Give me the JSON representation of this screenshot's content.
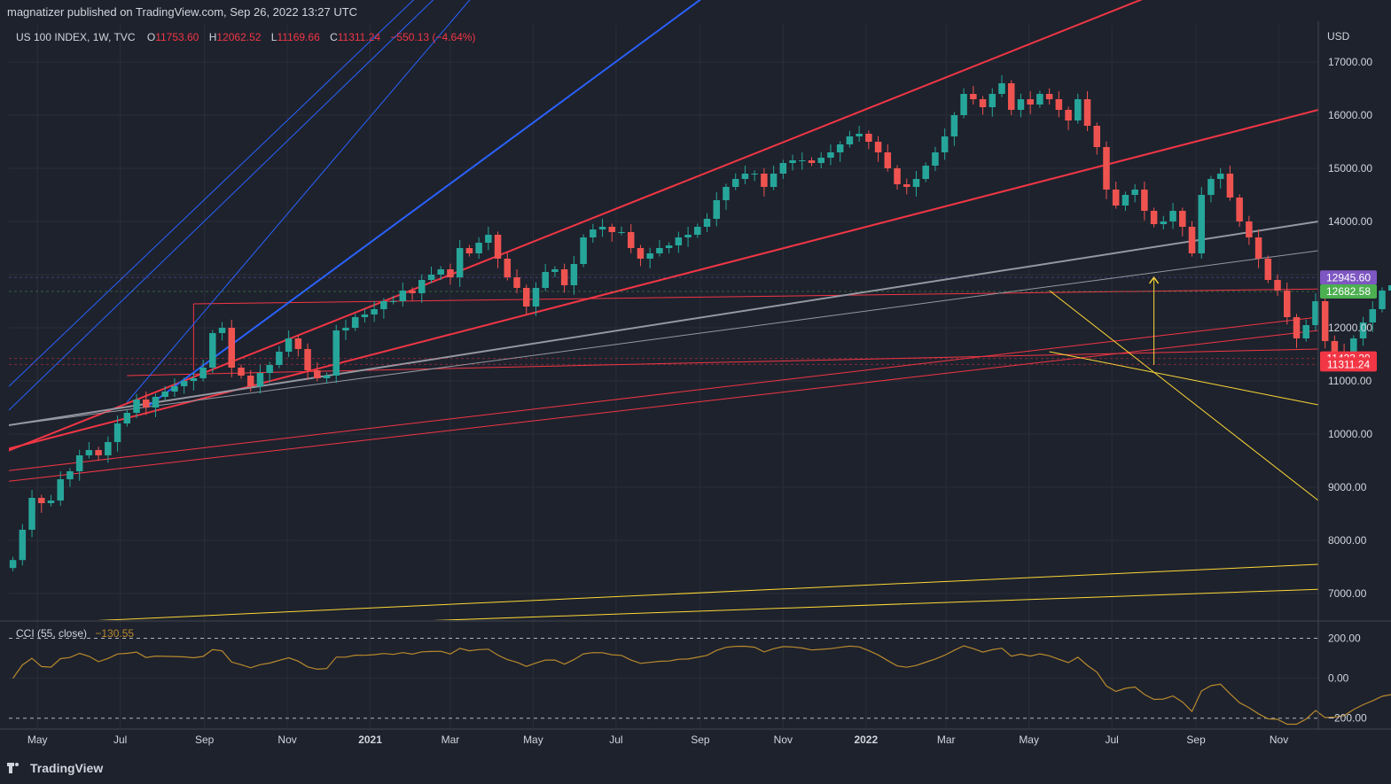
{
  "header": {
    "publisher": "magnatizer published on TradingView.com, Sep 26, 2022 13:27 UTC"
  },
  "legend": {
    "symbol": "US 100 INDEX, 1W, TVC",
    "o_label": "O",
    "o_value": "11753.60",
    "h_label": "H",
    "h_value": "12062.52",
    "l_label": "L",
    "l_value": "11169.66",
    "c_label": "C",
    "c_value": "11311.24",
    "change": "−550.13 (−4.64%)"
  },
  "currency": "USD",
  "cci_legend": {
    "label": "CCI (55, close)",
    "value": "−130.55"
  },
  "footer": {
    "brand": "TradingView"
  },
  "colors": {
    "background": "#1e222d",
    "grid": "#2a2e39",
    "up": "#26a69a",
    "down": "#ef5350",
    "red_line": "#f23645",
    "blue_line": "#2962ff",
    "gray_line": "#9598a1",
    "yellow_line": "#fdd835",
    "cci": "#b8892c",
    "text": "#d1d4dc"
  },
  "chart_data": [
    {
      "type": "candlestick",
      "symbol": "US 100 INDEX",
      "interval": "1W",
      "ylim": [
        6500,
        17700
      ],
      "y_ticks": [
        7000,
        8000,
        9000,
        10000,
        11000,
        12000,
        13000,
        14000,
        15000,
        16000,
        17000
      ],
      "y_tick_labels": [
        "7000.00",
        "8000.00",
        "9000.00",
        "10000.00",
        "11000.00",
        "12000.00",
        "13000.00",
        "14000.00",
        "15000.00",
        "16000.00",
        "17000.00"
      ],
      "x_tick_labels": [
        "May",
        "Jul",
        "Sep",
        "Nov",
        "2021",
        "Mar",
        "May",
        "Jul",
        "Sep",
        "Nov",
        "2022",
        "Mar",
        "May",
        "Jul",
        "Sep",
        "Nov"
      ],
      "x_tick_dates": [
        "2020-05-01",
        "2020-07-01",
        "2020-09-01",
        "2020-11-01",
        "2021-01-01",
        "2021-03-01",
        "2021-05-01",
        "2021-07-01",
        "2021-09-01",
        "2021-11-01",
        "2022-01-01",
        "2022-03-01",
        "2022-05-01",
        "2022-07-01",
        "2022-09-01",
        "2022-11-01"
      ],
      "x_range": [
        "2020-04-10",
        "2022-11-30"
      ],
      "first_week": "2020-04-13",
      "weekly_close": [
        7630,
        8200,
        8800,
        8700,
        8750,
        9150,
        9300,
        9600,
        9700,
        9600,
        9850,
        10200,
        10400,
        10650,
        10500,
        10700,
        10800,
        10900,
        11000,
        11050,
        11250,
        11900,
        12000,
        11250,
        11100,
        10900,
        11150,
        11300,
        11550,
        11800,
        11600,
        11200,
        11050,
        11100,
        11950,
        12000,
        12200,
        12250,
        12350,
        12500,
        12500,
        12700,
        12650,
        12900,
        13000,
        13100,
        12950,
        13500,
        13400,
        13600,
        13750,
        13300,
        12950,
        12750,
        12400,
        12750,
        13050,
        13100,
        12800,
        13200,
        13700,
        13850,
        13900,
        13800,
        13800,
        13500,
        13300,
        13400,
        13500,
        13550,
        13700,
        13750,
        13900,
        14050,
        14400,
        14650,
        14800,
        14900,
        14900,
        14650,
        14900,
        15100,
        15150,
        15150,
        15100,
        15200,
        15300,
        15450,
        15600,
        15650,
        15500,
        15300,
        15000,
        14700,
        14650,
        14800,
        15050,
        15300,
        15600,
        16000,
        16400,
        16300,
        16150,
        16400,
        16600,
        16100,
        16300,
        16200,
        16400,
        16300,
        16100,
        15900,
        16300,
        15800,
        15400,
        14600,
        14300,
        14500,
        14600,
        14200,
        13950,
        14000,
        14200,
        13900,
        13400,
        14500,
        14800,
        14900,
        14450,
        14000,
        13700,
        13300,
        12900,
        12700,
        12200,
        11800,
        12050,
        12500,
        11750,
        11550,
        11450,
        11800,
        12100,
        12350,
        12700,
        12800,
        13050,
        13200,
        13600,
        13300,
        12900,
        12300,
        12050,
        12050,
        12400,
        11750,
        11311
      ],
      "cci": {
        "label": "CCI (55, close)",
        "ylim": [
          -250,
          260
        ],
        "y_ticks": [
          200,
          0,
          -200
        ],
        "y_tick_labels": [
          "200.00",
          "0.00",
          "−200.00"
        ],
        "last_value": -130.55
      },
      "price_labels": [
        {
          "value": 12945.6,
          "text": "12945.60",
          "color": "#7e57c2"
        },
        {
          "value": 12682.58,
          "text": "12682.58",
          "color": "#4caf50"
        },
        {
          "value": 11423.2,
          "text": "11423.20",
          "color": "#f23645"
        },
        {
          "value": 11311.24,
          "text": "11311.24",
          "color": "#f23645"
        }
      ],
      "drawings": [
        {
          "color": "red",
          "width": 2,
          "from": [
            "2020-04-06",
            9650
          ],
          "to": [
            "2022-11-30",
            19500
          ]
        },
        {
          "color": "red",
          "width": 2,
          "from": [
            "2020-04-06",
            9700
          ],
          "to": [
            "2022-11-30",
            16100
          ]
        },
        {
          "color": "red",
          "width": 1,
          "from": [
            "2020-04-06",
            9300
          ],
          "to": [
            "2022-11-30",
            12200
          ]
        },
        {
          "color": "red",
          "width": 1,
          "from": [
            "2020-04-06",
            9100
          ],
          "to": [
            "2022-11-30",
            11950
          ]
        },
        {
          "color": "red",
          "width": 1,
          "from": [
            "2020-07-06",
            11100
          ],
          "to": [
            "2022-11-30",
            11600
          ]
        },
        {
          "color": "red",
          "width": 1,
          "from": [
            "2020-08-24",
            12450
          ],
          "to": [
            "2022-11-30",
            12730
          ]
        },
        {
          "color": "red",
          "width": 1,
          "from": [
            "2020-08-24",
            11200
          ],
          "to": [
            "2020-08-24",
            12450
          ]
        },
        {
          "color": "gray",
          "width": 2,
          "from": [
            "2020-04-06",
            10150
          ],
          "to": [
            "2022-11-30",
            14000
          ]
        },
        {
          "color": "gray",
          "width": 1,
          "from": [
            "2020-04-06",
            10150
          ],
          "to": [
            "2022-11-30",
            13450
          ]
        },
        {
          "color": "blue",
          "width": 2,
          "from": [
            "2020-07-20",
            10500
          ],
          "to": [
            "2021-10-15",
            19000
          ]
        },
        {
          "color": "blue",
          "width": 1,
          "from": [
            "2020-04-06",
            10800
          ],
          "to": [
            "2021-03-08",
            19000
          ]
        },
        {
          "color": "blue",
          "width": 1,
          "from": [
            "2020-04-06",
            10350
          ],
          "to": [
            "2021-03-22",
            19000
          ]
        },
        {
          "color": "blue",
          "width": 1,
          "from": [
            "2020-07-06",
            10600
          ],
          "to": [
            "2021-04-12",
            19000
          ]
        },
        {
          "color": "yellow",
          "width": 1,
          "from": [
            "2022-05-16",
            12700
          ],
          "to": [
            "2022-11-30",
            8750
          ]
        },
        {
          "color": "yellow",
          "width": 1,
          "from": [
            "2022-05-16",
            11550
          ],
          "to": [
            "2022-11-30",
            10550
          ]
        },
        {
          "color": "yellow",
          "width": 1,
          "from": [
            "2020-05-10",
            6450
          ],
          "to": [
            "2022-11-30",
            7550
          ]
        },
        {
          "color": "yellow",
          "width": 1,
          "from": [
            "2021-01-01",
            6450
          ],
          "to": [
            "2022-11-30",
            7080
          ]
        },
        {
          "color": "yellow",
          "width": 1,
          "from": [
            "2022-08-01",
            11300
          ],
          "to": [
            "2022-08-01",
            12950
          ],
          "arrow": true
        }
      ]
    }
  ]
}
